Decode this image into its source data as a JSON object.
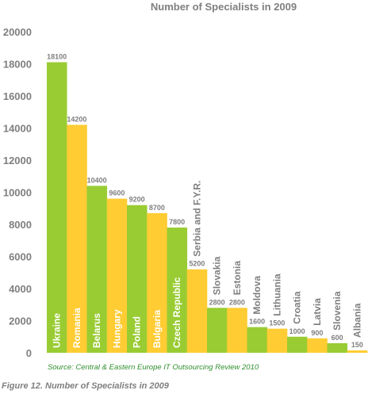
{
  "chart_data": {
    "type": "bar",
    "title": "Number of Specialists in 2009",
    "categories": [
      "Ukraine",
      "Romania",
      "Belarus",
      "Hungary",
      "Poland",
      "Bulgaria",
      "Czech Republic",
      "Serbia and F.Y.R.",
      "Slovakia",
      "Estonia",
      "Moldova",
      "Lithuania",
      "Croatia",
      "Latvia",
      "Slovenia",
      "Albania"
    ],
    "values": [
      18100,
      14200,
      10400,
      9600,
      9200,
      8700,
      7800,
      5200,
      2800,
      2800,
      1600,
      1500,
      1000,
      900,
      600,
      150
    ],
    "value_labels": [
      "18100",
      "14200",
      "10400",
      "9600",
      "9200",
      "8700",
      "7800",
      "5200",
      "2800",
      "2800",
      "1600",
      "1500",
      "1000",
      "900",
      "600",
      "150"
    ],
    "ylim": [
      0,
      20000
    ],
    "yticks": [
      "0",
      "2000",
      "4000",
      "6000",
      "8000",
      "10000",
      "12000",
      "14000",
      "16000",
      "18000",
      "20000"
    ],
    "xlabel": "",
    "ylabel": "",
    "grid": false,
    "legend": "none",
    "colors": {
      "green": "#99cc33",
      "yellow": "#ffcc33"
    },
    "source": "Source: Central & Eastern Europe IT Outsourcing Review 2010"
  },
  "caption": "Figure 12. Number of Specialists in 2009"
}
